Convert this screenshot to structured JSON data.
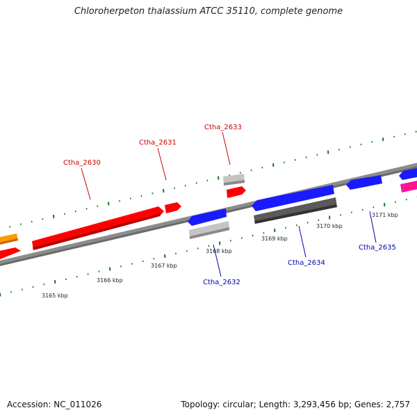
{
  "header": {
    "title": "Chloroherpeton thalassium ATCC 35110, complete genome"
  },
  "footer": {
    "accession": "Accession: NC_011026",
    "topology": "Topology: circular; Length: 3,293,456 bp; Genes: 2,757"
  },
  "colors": {
    "forward_label": "#cc0000",
    "reverse_label": "#0000aa",
    "backbone": "#8c8c8c",
    "tick": "#1a7a1a",
    "forward_cds": "#ff0000",
    "reverse_cds": "#1a1aff",
    "pseudo_or_rna": "#b8b8b8",
    "dark_feature": "#555555",
    "orange_feature": "#ff9900",
    "pink_feature": "#ff1493"
  },
  "scale": {
    "unit": "kbp",
    "labels": [
      "3165 kbp",
      "3166 kbp",
      "3167 kbp",
      "3168 kbp",
      "3169 kbp",
      "3170 kbp",
      "3171 kbp"
    ]
  },
  "genes": {
    "forward": [
      "Ctha_2630",
      "Ctha_2631",
      "Ctha_2633"
    ],
    "reverse": [
      "Ctha_2632",
      "Ctha_2634",
      "Ctha_2635"
    ]
  }
}
